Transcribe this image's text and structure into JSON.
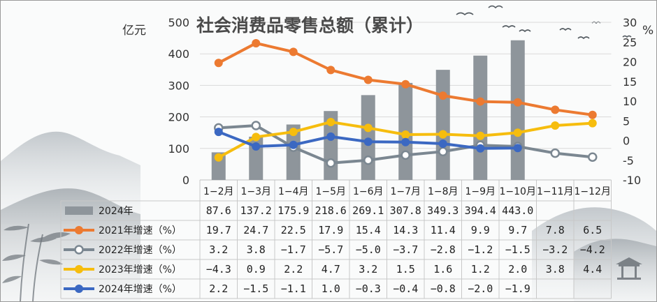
{
  "chart_data": {
    "type": "bar-line-table",
    "title": "社会消费品零售总额（累计）",
    "left_unit": "亿元",
    "right_unit": "%",
    "left_axis": {
      "min": 0,
      "max": 500,
      "ticks": [
        "0",
        "100",
        "200",
        "300",
        "400",
        "500"
      ]
    },
    "right_axis": {
      "min": -10,
      "max": 30,
      "ticks": [
        "-10",
        "-5",
        "0",
        "5",
        "10",
        "15",
        "20",
        "25",
        "30"
      ]
    },
    "categories": [
      "1−2月",
      "1−3月",
      "1−4月",
      "1−5月",
      "1−6月",
      "1−7月",
      "1−8月",
      "1−9月",
      "1−10月",
      "1−11月",
      "1−12月"
    ],
    "bar_series": {
      "name": "2024年",
      "color": "#8e959b",
      "values": [
        87.6,
        137.2,
        175.9,
        218.6,
        269.1,
        307.8,
        349.3,
        394.4,
        443.0,
        null,
        null
      ],
      "labels": [
        "87.6",
        "137.2",
        "175.9",
        "218.6",
        "269.1",
        "307.8",
        "349.3",
        "394.4",
        "443.0",
        "",
        ""
      ]
    },
    "line_series": [
      {
        "name": "2021年增速（%）",
        "color": "#ec7a31",
        "marker": "filled",
        "values": [
          19.7,
          24.7,
          22.5,
          17.9,
          15.4,
          14.3,
          11.4,
          9.9,
          9.7,
          7.8,
          6.5
        ],
        "labels": [
          "19.7",
          "24.7",
          "22.5",
          "17.9",
          "15.4",
          "14.3",
          "11.4",
          "9.9",
          "9.7",
          "7.8",
          "6.5"
        ]
      },
      {
        "name": "2022年增速（%）",
        "color": "#7b8791",
        "marker": "hollow",
        "values": [
          3.2,
          3.8,
          -1.7,
          -5.7,
          -5.0,
          -3.7,
          -2.8,
          -1.2,
          -1.5,
          -3.2,
          -4.2
        ],
        "labels": [
          "3.2",
          "3.8",
          "−1.7",
          "−5.7",
          "−5.0",
          "−3.7",
          "−2.8",
          "−1.2",
          "−1.5",
          "−3.2",
          "−4.2"
        ]
      },
      {
        "name": "2023年增速（%）",
        "color": "#f6bd0e",
        "marker": "filled",
        "values": [
          -4.3,
          0.9,
          2.2,
          4.7,
          3.2,
          1.5,
          1.6,
          1.2,
          2.0,
          3.8,
          4.4
        ],
        "labels": [
          "−4.3",
          "0.9",
          "2.2",
          "4.7",
          "3.2",
          "1.5",
          "1.6",
          "1.2",
          "2.0",
          "3.8",
          "4.4"
        ]
      },
      {
        "name": "2024年增速（%）",
        "color": "#3b68c2",
        "marker": "filled",
        "values": [
          2.2,
          -1.5,
          -1.1,
          1.0,
          -0.3,
          -0.4,
          -0.8,
          -2.0,
          -1.9,
          null,
          null
        ],
        "labels": [
          "2.2",
          "−1.5",
          "−1.1",
          "1.0",
          "−0.3",
          "−0.4",
          "−0.8",
          "−2.0",
          "−1.9",
          "",
          ""
        ]
      }
    ],
    "grid": true,
    "legend": "data-table-bottom"
  }
}
